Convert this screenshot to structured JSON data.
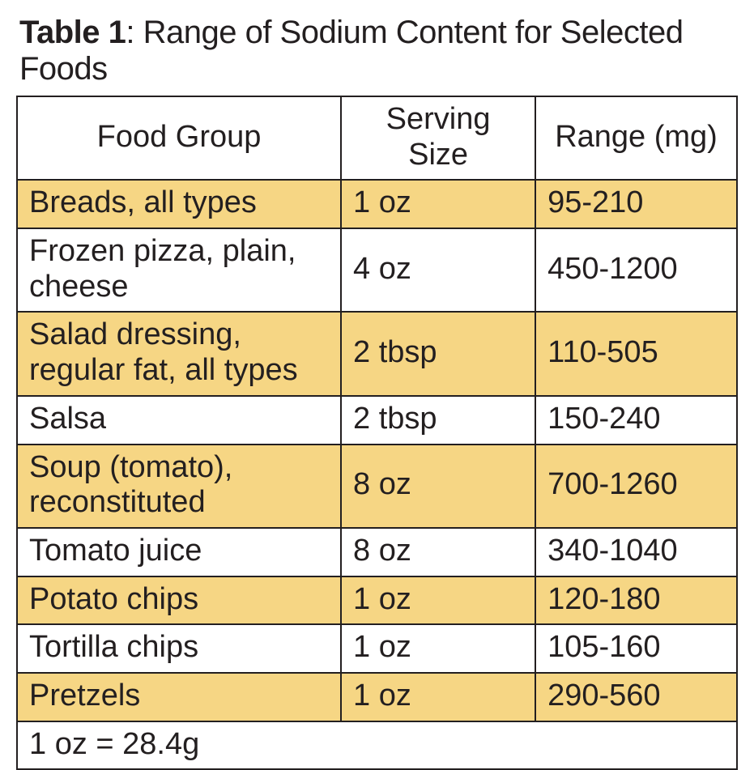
{
  "caption": {
    "label_bold": "Table 1",
    "label_rest": ": Range of Sodium Content for Selected Foods"
  },
  "columns": [
    "Food Group",
    "Serving Size",
    "Range (mg)"
  ],
  "rows": [
    {
      "food": "Breads, all types",
      "serving": "1 oz",
      "range": "95-210",
      "highlight": true
    },
    {
      "food": "Frozen pizza, plain, cheese",
      "serving": "4 oz",
      "range": "450-1200",
      "highlight": false
    },
    {
      "food": "Salad dressing, regular fat, all types",
      "serving": "2 tbsp",
      "range": "110-505",
      "highlight": true
    },
    {
      "food": "Salsa",
      "serving": "2 tbsp",
      "range": "150-240",
      "highlight": false
    },
    {
      "food": "Soup (tomato), reconstituted",
      "serving": "8 oz",
      "range": "700-1260",
      "highlight": true
    },
    {
      "food": "Tomato juice",
      "serving": "8 oz",
      "range": "340-1040",
      "highlight": false
    },
    {
      "food": "Potato chips",
      "serving": "1 oz",
      "range": "120-180",
      "highlight": true
    },
    {
      "food": "Tortilla chips",
      "serving": "1 oz",
      "range": "105-160",
      "highlight": false
    },
    {
      "food": "Pretzels",
      "serving": "1 oz",
      "range": "290-560",
      "highlight": true
    }
  ],
  "footnote": "1 oz = 28.4g",
  "style": {
    "highlight_color": "#f6d684",
    "plain_color": "#ffffff",
    "border_color": "#231f20",
    "text_color": "#231f20",
    "caption_fontsize_pt": 30,
    "cell_fontsize_pt": 28,
    "font_family": "Helvetica Neue Condensed",
    "col_widths_pct": [
      45,
      27,
      28
    ]
  }
}
